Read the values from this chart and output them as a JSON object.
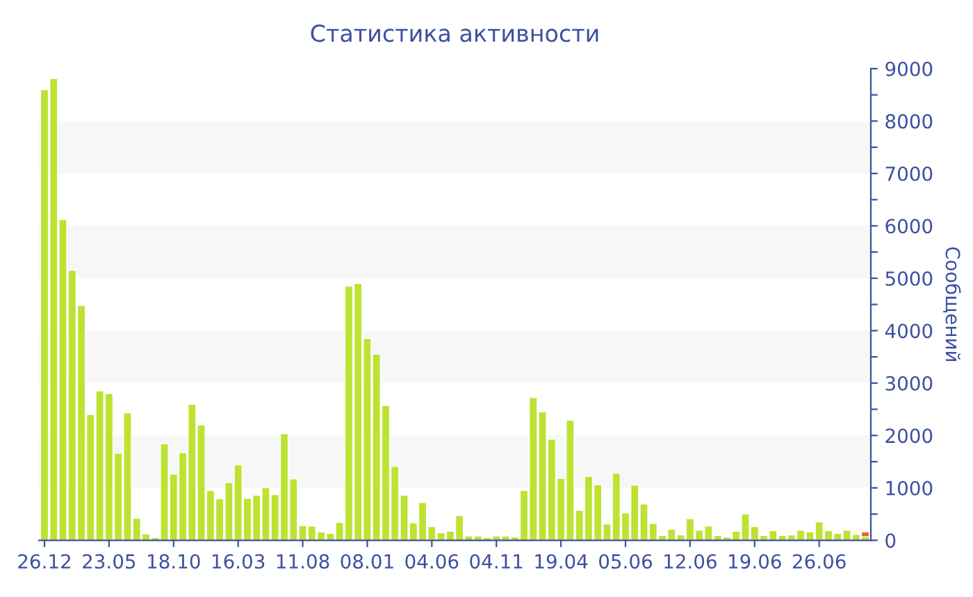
{
  "chart_data": {
    "type": "bar",
    "title": "Статистика активности",
    "ylabel": "Сообщений",
    "stacked": true,
    "categories": [
      "26.12",
      null,
      null,
      null,
      null,
      null,
      null,
      "23.05",
      null,
      null,
      null,
      null,
      null,
      null,
      "18.10",
      null,
      null,
      null,
      null,
      null,
      null,
      "16.03",
      null,
      null,
      null,
      null,
      null,
      null,
      "11.08",
      null,
      null,
      null,
      null,
      null,
      null,
      "08.01",
      null,
      null,
      null,
      null,
      null,
      null,
      "04.06",
      null,
      null,
      null,
      null,
      null,
      null,
      "04.11",
      null,
      null,
      null,
      null,
      null,
      null,
      "19.04",
      null,
      null,
      null,
      null,
      null,
      null,
      "05.06",
      null,
      null,
      null,
      null,
      null,
      null,
      "12.06",
      null,
      null,
      null,
      null,
      null,
      null,
      "19.06",
      null,
      null,
      null,
      null,
      null,
      null,
      "26.06",
      null,
      null,
      null,
      null,
      null
    ],
    "series": [
      {
        "color": "#bde232",
        "values": [
          8600,
          8810,
          6120,
          5150,
          4480,
          2400,
          2850,
          2800,
          1660,
          2430,
          420,
          120,
          50,
          1840,
          1260,
          1670,
          2590,
          2200,
          950,
          790,
          1100,
          1440,
          800,
          860,
          1000,
          870,
          2030,
          1170,
          280,
          270,
          160,
          130,
          340,
          4850,
          4900,
          3850,
          3550,
          2570,
          1410,
          860,
          330,
          720,
          260,
          140,
          170,
          470,
          80,
          80,
          50,
          80,
          80,
          60,
          950,
          2720,
          2450,
          1930,
          1180,
          2290,
          570,
          1220,
          1060,
          310,
          1280,
          520,
          1050,
          690,
          320,
          90,
          210,
          100,
          410,
          190,
          270,
          90,
          60,
          170,
          500,
          260,
          90,
          180,
          90,
          100,
          190,
          160,
          350,
          180,
          130,
          190,
          110,
          70
        ]
      },
      {
        "color": "#e8643c",
        "values": [
          null,
          null,
          null,
          null,
          null,
          null,
          null,
          null,
          null,
          null,
          null,
          null,
          null,
          null,
          null,
          null,
          null,
          null,
          null,
          null,
          null,
          null,
          null,
          null,
          null,
          null,
          null,
          null,
          null,
          null,
          null,
          null,
          null,
          null,
          null,
          null,
          null,
          null,
          null,
          null,
          null,
          null,
          null,
          null,
          null,
          null,
          null,
          null,
          null,
          null,
          null,
          null,
          null,
          null,
          null,
          null,
          null,
          null,
          null,
          null,
          null,
          null,
          null,
          null,
          null,
          null,
          null,
          null,
          null,
          null,
          null,
          null,
          null,
          null,
          null,
          null,
          null,
          null,
          null,
          null,
          null,
          null,
          null,
          null,
          null,
          null,
          null,
          null,
          null,
          90
        ]
      }
    ],
    "ylim": [
      0,
      9000
    ],
    "yticks": [
      0,
      {
        "value": 500,
        "label": null
      },
      1000,
      {
        "value": 1500,
        "label": null
      },
      2000,
      {
        "value": 2500,
        "label": null
      },
      3000,
      {
        "value": 3500,
        "label": null
      },
      4000,
      {
        "value": 4500,
        "label": null
      },
      5000,
      {
        "value": 5500,
        "label": null
      },
      6000,
      {
        "value": 6500,
        "label": null
      },
      7000,
      {
        "value": 7500,
        "label": null
      },
      8000,
      {
        "value": 8500,
        "label": null
      },
      9000
    ],
    "bands": [
      {
        "axis": "y",
        "from": 1000,
        "to": 2000,
        "color": "#f7f7f7"
      },
      {
        "axis": "y",
        "from": 3000,
        "to": 4000,
        "color": "#f7f7f7"
      },
      {
        "axis": "y",
        "from": 5000,
        "to": 6000,
        "color": "#f7f7f7"
      },
      {
        "axis": "y",
        "from": 7000,
        "to": 8000,
        "color": "#f7f7f7"
      }
    ],
    "grid": false,
    "legend": false
  }
}
